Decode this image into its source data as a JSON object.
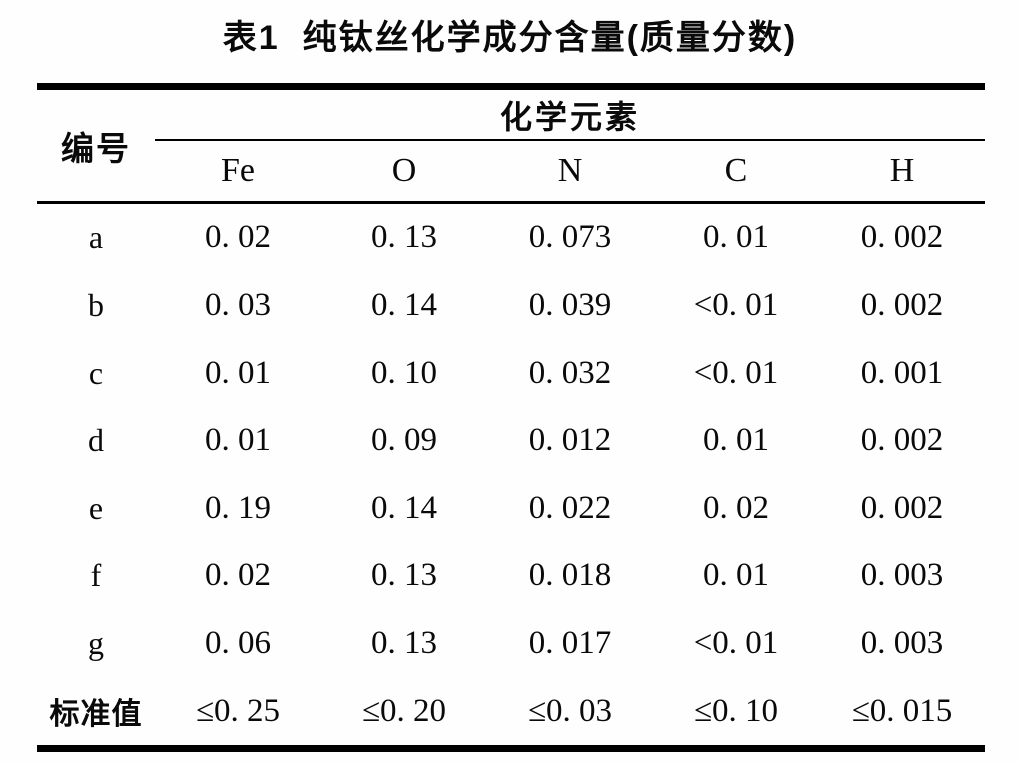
{
  "title": "表1  纯钛丝化学成分含量(质量分数)",
  "table": {
    "id_header": "编号",
    "group_header": "化学元素",
    "element_headers": [
      "Fe",
      "O",
      "N",
      "C",
      "H"
    ],
    "rows": [
      {
        "label": "a",
        "values": [
          "0. 02",
          "0. 13",
          "0. 073",
          "0. 01",
          "0. 002"
        ]
      },
      {
        "label": "b",
        "values": [
          "0. 03",
          "0. 14",
          "0. 039",
          "<0. 01",
          "0. 002"
        ]
      },
      {
        "label": "c",
        "values": [
          "0. 01",
          "0. 10",
          "0. 032",
          "<0. 01",
          "0. 001"
        ]
      },
      {
        "label": "d",
        "values": [
          "0. 01",
          "0. 09",
          "0. 012",
          "0. 01",
          "0. 002"
        ]
      },
      {
        "label": "e",
        "values": [
          "0. 19",
          "0. 14",
          "0. 022",
          "0. 02",
          "0. 002"
        ]
      },
      {
        "label": "f",
        "values": [
          "0. 02",
          "0. 13",
          "0. 018",
          "0. 01",
          "0. 003"
        ]
      },
      {
        "label": "g",
        "values": [
          "0. 06",
          "0. 13",
          "0. 017",
          "<0. 01",
          "0. 003"
        ]
      },
      {
        "label": "标准值",
        "values": [
          "≤0. 25",
          "≤0. 20",
          "≤0. 03",
          "≤0. 10",
          "≤0. 015"
        ]
      }
    ]
  }
}
